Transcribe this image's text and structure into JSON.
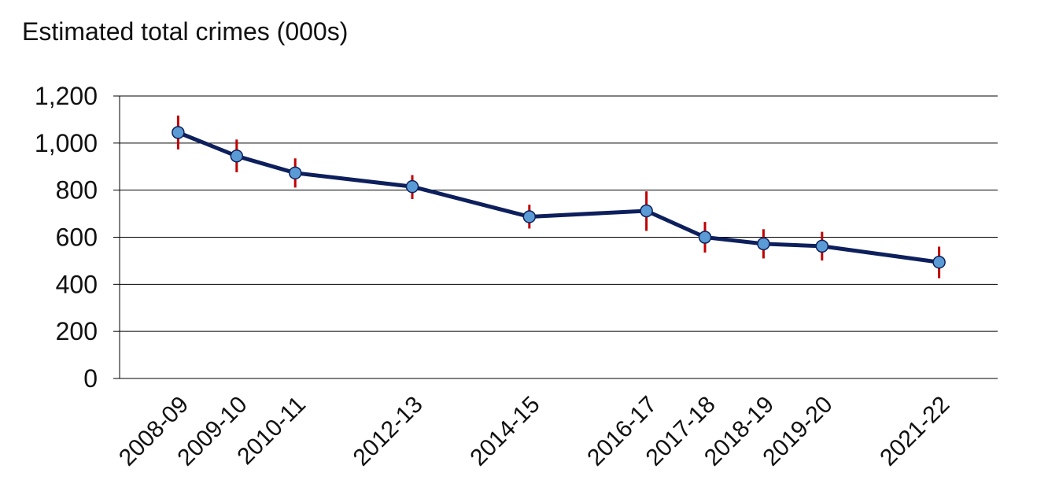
{
  "chart_data": {
    "type": "line",
    "title": "Estimated total crimes (000s)",
    "x": [
      "2008-09",
      "2009-10",
      "2010-11",
      "2012-13",
      "2014-15",
      "2016-17",
      "2017-18",
      "2018-19",
      "2019-20",
      "2021-22"
    ],
    "x_positions_years": [
      2008,
      2009,
      2010,
      2012,
      2014,
      2016,
      2017,
      2018,
      2019,
      2021
    ],
    "series": [
      {
        "values": [
          1045,
          945,
          873,
          815,
          687,
          712,
          600,
          572,
          562,
          494
        ],
        "lower": [
          973,
          876,
          811,
          762,
          637,
          627,
          535,
          510,
          501,
          426
        ],
        "upper": [
          1117,
          1015,
          935,
          864,
          738,
          795,
          665,
          634,
          623,
          560
        ]
      }
    ],
    "ylim": [
      0,
      1200
    ],
    "yticks": [
      0,
      200,
      400,
      600,
      800,
      1000,
      1200
    ],
    "ytick_labels": [
      "0",
      "200",
      "400",
      "600",
      "800",
      "1,000",
      "1,200"
    ],
    "grid": true,
    "legend": "none",
    "colors": {
      "line": "#0d1f5c",
      "marker_fill": "#5b9bd5",
      "marker_edge": "#0d1f5c",
      "error_bar": "#c00000",
      "grid": "#000000"
    }
  }
}
